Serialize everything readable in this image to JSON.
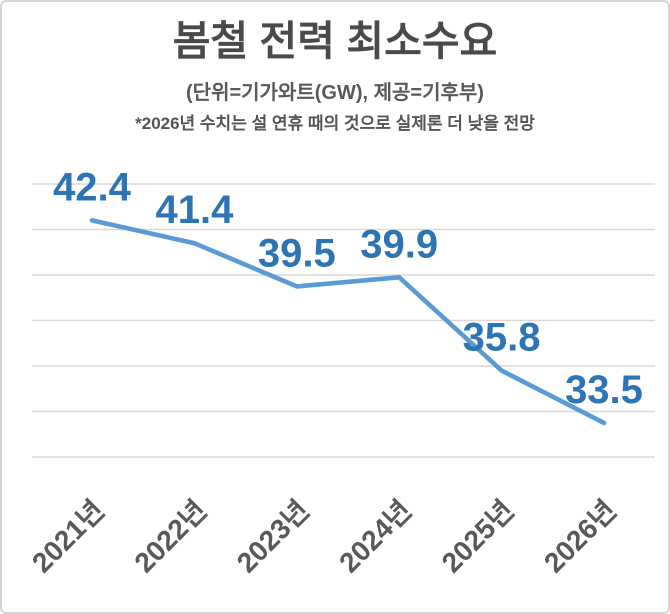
{
  "frame": {
    "background": "#ffffff",
    "border_color": "#d7d5d5"
  },
  "header": {
    "title": "봄철 전력 최소수요",
    "subtitle": "(단위=기가와트(GW), 제공=기후부)",
    "note": "*2026년 수치는 설 연휴 때의 것으로 실제론 더 낮을 전망"
  },
  "chart_data": {
    "type": "line",
    "title": "봄철 전력 최소수요",
    "unit_label": "기가와트(GW)",
    "source_label": "기후부",
    "categories": [
      "2021년",
      "2022년",
      "2023년",
      "2024년",
      "2025년",
      "2026년"
    ],
    "values": [
      42.4,
      41.4,
      39.5,
      39.9,
      35.8,
      33.5
    ],
    "data_labels": [
      "42.4",
      "41.4",
      "39.5",
      "39.9",
      "35.8",
      "33.5"
    ],
    "ylim": [
      32,
      44
    ],
    "gridline_values": [
      44,
      42,
      40,
      38,
      36,
      34,
      32
    ],
    "grid": "horizontal",
    "legend": "none",
    "colors": {
      "line": "#5B9BD5",
      "data_label": "#2E74B5",
      "gridline": "#D9D9D9",
      "axis_label": "#595959"
    }
  }
}
